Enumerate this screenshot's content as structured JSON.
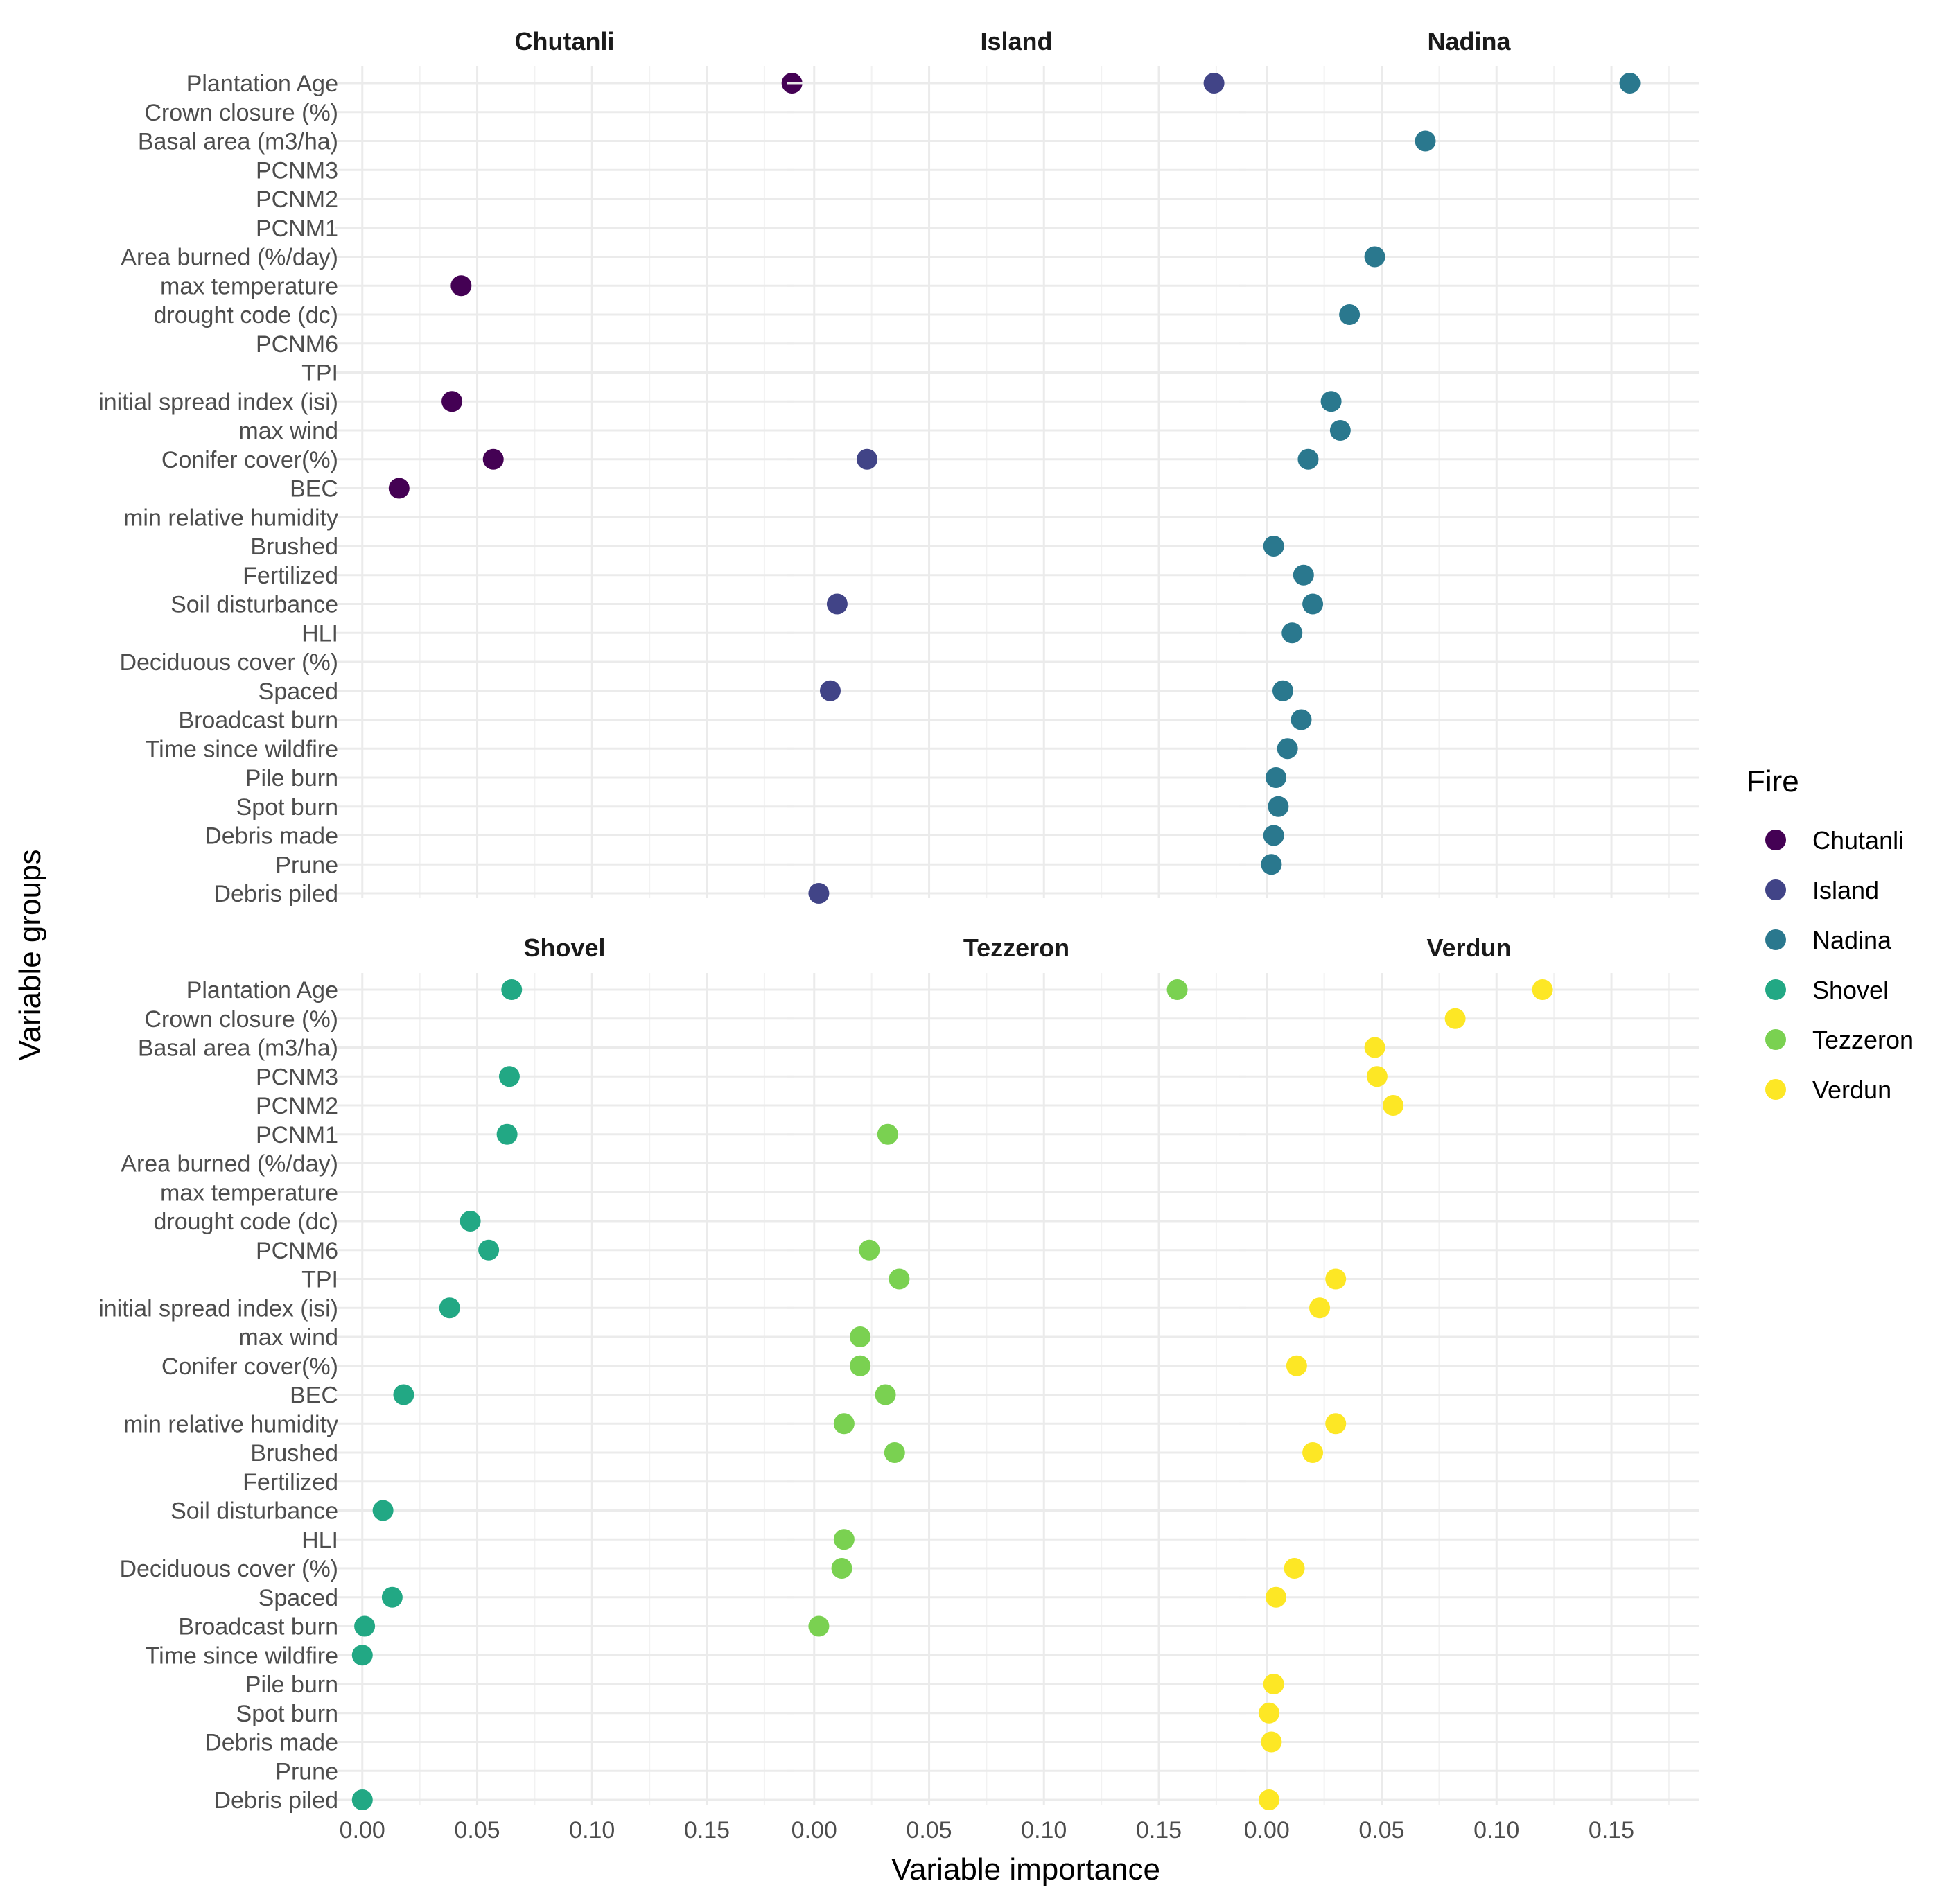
{
  "chart_data": {
    "type": "scatter",
    "xlabel": "Variable importance",
    "ylabel": "Variable groups",
    "xlim": [
      -0.012,
      0.188
    ],
    "x_ticks": [
      0.0,
      0.05,
      0.1,
      0.15
    ],
    "x_tick_labels": [
      "0.00",
      "0.05",
      "0.10",
      "0.15"
    ],
    "grid": true,
    "legend": {
      "title": "Fire",
      "placement": "right"
    },
    "categories": [
      "Plantation Age",
      "Crown closure (%)",
      "Basal area (m3/ha)",
      "PCNM3",
      "PCNM2",
      "PCNM1",
      "Area burned (%/day)",
      "max temperature",
      "drought code (dc)",
      "PCNM6",
      "TPI",
      "initial spread index (isi)",
      "max wind",
      "Conifer cover(%)",
      "BEC",
      "min relative humidity",
      "Brushed",
      "Fertilized",
      "Soil disturbance",
      "HLI",
      "Deciduous cover (%)",
      "Spaced",
      "Broadcast burn",
      "Time since wildfire",
      "Pile burn",
      "Spot burn",
      "Debris made",
      "Prune",
      "Debris piled"
    ],
    "series": [
      {
        "name": "Chutanli",
        "color": "#440154",
        "points": [
          {
            "y": "Plantation Age",
            "x": 0.187
          },
          {
            "y": "max temperature",
            "x": 0.043
          },
          {
            "y": "initial spread index (isi)",
            "x": 0.039
          },
          {
            "y": "Conifer cover(%)",
            "x": 0.057
          },
          {
            "y": "BEC",
            "x": 0.016
          }
        ]
      },
      {
        "name": "Island",
        "color": "#414487",
        "points": [
          {
            "y": "Plantation Age",
            "x": 0.174
          },
          {
            "y": "Conifer cover(%)",
            "x": 0.023
          },
          {
            "y": "Soil disturbance",
            "x": 0.01
          },
          {
            "y": "Spaced",
            "x": 0.007
          },
          {
            "y": "Debris piled",
            "x": 0.002
          }
        ]
      },
      {
        "name": "Nadina",
        "color": "#2A788E",
        "points": [
          {
            "y": "Plantation Age",
            "x": 0.158
          },
          {
            "y": "Basal area (m3/ha)",
            "x": 0.069
          },
          {
            "y": "Area burned (%/day)",
            "x": 0.047
          },
          {
            "y": "drought code (dc)",
            "x": 0.036
          },
          {
            "y": "initial spread index (isi)",
            "x": 0.028
          },
          {
            "y": "max wind",
            "x": 0.032
          },
          {
            "y": "Conifer cover(%)",
            "x": 0.018
          },
          {
            "y": "Brushed",
            "x": 0.003
          },
          {
            "y": "Fertilized",
            "x": 0.016
          },
          {
            "y": "Soil disturbance",
            "x": 0.02
          },
          {
            "y": "HLI",
            "x": 0.011
          },
          {
            "y": "Spaced",
            "x": 0.007
          },
          {
            "y": "Broadcast burn",
            "x": 0.015
          },
          {
            "y": "Time since wildfire",
            "x": 0.009
          },
          {
            "y": "Pile burn",
            "x": 0.004
          },
          {
            "y": "Spot burn",
            "x": 0.005
          },
          {
            "y": "Debris made",
            "x": 0.003
          },
          {
            "y": "Prune",
            "x": 0.002
          }
        ]
      },
      {
        "name": "Shovel",
        "color": "#22A884",
        "points": [
          {
            "y": "Plantation Age",
            "x": 0.065
          },
          {
            "y": "PCNM3",
            "x": 0.064
          },
          {
            "y": "PCNM1",
            "x": 0.063
          },
          {
            "y": "drought code (dc)",
            "x": 0.047
          },
          {
            "y": "PCNM6",
            "x": 0.055
          },
          {
            "y": "initial spread index (isi)",
            "x": 0.038
          },
          {
            "y": "BEC",
            "x": 0.018
          },
          {
            "y": "Soil disturbance",
            "x": 0.009
          },
          {
            "y": "Spaced",
            "x": 0.013
          },
          {
            "y": "Broadcast burn",
            "x": 0.001
          },
          {
            "y": "Time since wildfire",
            "x": 0.0
          },
          {
            "y": "Debris piled",
            "x": 0.0
          }
        ]
      },
      {
        "name": "Tezzeron",
        "color": "#7AD151",
        "points": [
          {
            "y": "Plantation Age",
            "x": 0.158
          },
          {
            "y": "PCNM1",
            "x": 0.032
          },
          {
            "y": "PCNM6",
            "x": 0.024
          },
          {
            "y": "TPI",
            "x": 0.037
          },
          {
            "y": "max wind",
            "x": 0.02
          },
          {
            "y": "Conifer cover(%)",
            "x": 0.02
          },
          {
            "y": "BEC",
            "x": 0.031
          },
          {
            "y": "min relative humidity",
            "x": 0.013
          },
          {
            "y": "Brushed",
            "x": 0.035
          },
          {
            "y": "HLI",
            "x": 0.013
          },
          {
            "y": "Deciduous cover (%)",
            "x": 0.012
          },
          {
            "y": "Broadcast burn",
            "x": 0.002
          }
        ]
      },
      {
        "name": "Verdun",
        "color": "#FDE725",
        "points": [
          {
            "y": "Plantation Age",
            "x": 0.12
          },
          {
            "y": "Crown closure (%)",
            "x": 0.082
          },
          {
            "y": "Basal area (m3/ha)",
            "x": 0.047
          },
          {
            "y": "PCNM3",
            "x": 0.048
          },
          {
            "y": "PCNM2",
            "x": 0.055
          },
          {
            "y": "TPI",
            "x": 0.03
          },
          {
            "y": "initial spread index (isi)",
            "x": 0.023
          },
          {
            "y": "Conifer cover(%)",
            "x": 0.013
          },
          {
            "y": "min relative humidity",
            "x": 0.03
          },
          {
            "y": "Brushed",
            "x": 0.02
          },
          {
            "y": "Deciduous cover (%)",
            "x": 0.012
          },
          {
            "y": "Spaced",
            "x": 0.004
          },
          {
            "y": "Pile burn",
            "x": 0.003
          },
          {
            "y": "Spot burn",
            "x": 0.001
          },
          {
            "y": "Debris made",
            "x": 0.002
          },
          {
            "y": "Debris piled",
            "x": 0.001
          }
        ]
      }
    ]
  }
}
